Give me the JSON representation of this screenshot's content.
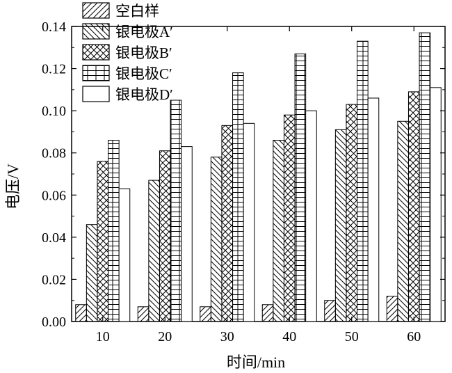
{
  "chart_data": {
    "type": "bar",
    "title": "",
    "xlabel": "时间/min",
    "ylabel": "电压/V",
    "categories": [
      "10",
      "20",
      "30",
      "40",
      "50",
      "60"
    ],
    "ylim": [
      0,
      0.14
    ],
    "yticks": [
      "0.00",
      "0.02",
      "0.04",
      "0.06",
      "0.08",
      "0.10",
      "0.12",
      "0.14"
    ],
    "grid": false,
    "legend_position": "top-left",
    "series": [
      {
        "name": "空白样",
        "pattern": "forward-diagonal",
        "values": [
          0.008,
          0.007,
          0.007,
          0.008,
          0.01,
          0.012
        ]
      },
      {
        "name": "银电极A′",
        "pattern": "back-diagonal",
        "values": [
          0.046,
          0.067,
          0.078,
          0.086,
          0.091,
          0.095
        ]
      },
      {
        "name": "银电极B′",
        "pattern": "cross-hatch",
        "values": [
          0.076,
          0.081,
          0.093,
          0.098,
          0.103,
          0.109
        ]
      },
      {
        "name": "银电极C′",
        "pattern": "grid",
        "values": [
          0.086,
          0.105,
          0.118,
          0.127,
          0.133,
          0.137
        ]
      },
      {
        "name": "银电极D′",
        "pattern": "none",
        "values": [
          0.063,
          0.083,
          0.094,
          0.1,
          0.106,
          0.111
        ]
      }
    ]
  }
}
